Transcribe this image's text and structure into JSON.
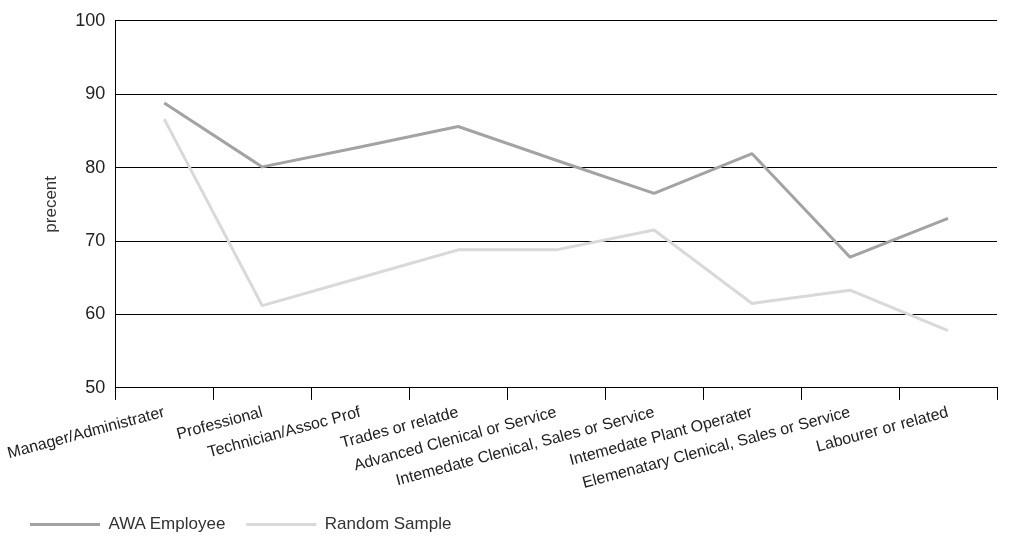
{
  "chart_data": {
    "type": "line",
    "ylabel": "precent",
    "categories": [
      "Manager/Administrater",
      "Professional",
      "Technician/Assoc Prof",
      "Trades or relatde",
      "Advanced Clenical or Service",
      "Intemedate Clenical, Sales or Service",
      "Intemedate Plant Operater",
      "Elemenatary Clenical, Sales or Service",
      "Labourer or related"
    ],
    "series": [
      {
        "name": "AWA Employee",
        "color": "#a3a3a3",
        "values": [
          88.8,
          80.1,
          82.8,
          85.6,
          81,
          76.5,
          81.9,
          67.8,
          73.1
        ]
      },
      {
        "name": "Random Sample",
        "color": "#d9d9d9",
        "values": [
          86.6,
          61.2,
          65,
          68.8,
          68.8,
          71.5,
          61.5,
          63.3,
          57.8
        ]
      }
    ],
    "ylim": [
      50,
      100
    ],
    "yticks": [
      50,
      60,
      70,
      80,
      90,
      100
    ],
    "grid": "y",
    "legend": "bottom left",
    "marker": "none",
    "line_style": "solid"
  }
}
